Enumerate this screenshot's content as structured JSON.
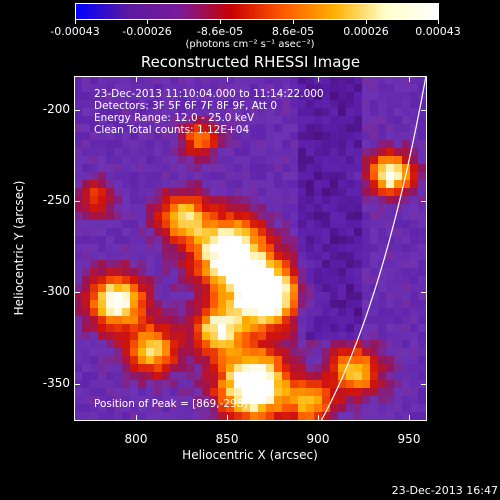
{
  "title": "Reconstructed RHESSI Image",
  "colorbar": {
    "tick_labels": [
      "-0.00043",
      "-0.00026",
      "-8.6e-05",
      "8.6e-05",
      "0.00026",
      "0.00043"
    ],
    "units": "(photons cm⁻² s⁻¹ asec⁻²)"
  },
  "annotations": {
    "time_range": "23-Dec-2013 11:10:04.000 to 11:14:22.000",
    "detectors": "Detectors: 3F 5F 6F 7F 8F 9F, Att 0",
    "energy_range": "Energy Range: 12.0 - 25.0 keV",
    "clean": "Clean     Total counts: 1.12E+04",
    "peak": "Position of Peak = [869,-298]"
  },
  "x_axis": {
    "label": "Heliocentric X (arcsec)",
    "ticks": [
      "800",
      "850",
      "900",
      "950"
    ]
  },
  "y_axis": {
    "label": "Heliocentric Y (arcsec)",
    "ticks": [
      "-200",
      "-250",
      "-300",
      "-350"
    ]
  },
  "footer_timestamp": "23-Dec-2013 16:47",
  "colors": {
    "background": "#000000",
    "limb_line": "#ffffff",
    "colormap": [
      "#0000ff",
      "#5a1aa0",
      "#7a1a9a",
      "#c80000",
      "#ff5a00",
      "#ffb000",
      "#ffffcc",
      "#ffffff"
    ]
  }
}
